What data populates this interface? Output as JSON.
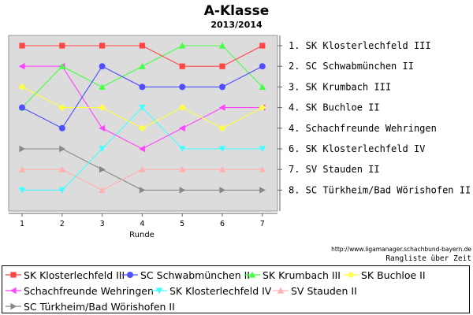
{
  "chart_data": {
    "type": "line",
    "title": "A-Klasse",
    "subtitle": "2013/2014",
    "xlabel": "Runde",
    "ylabel": "",
    "x": [
      1,
      2,
      3,
      4,
      5,
      6,
      7
    ],
    "ylim": [
      1,
      8
    ],
    "y_inverted": true,
    "grid": false,
    "legend_placement": "bottom",
    "right_labels": [
      "1. SK Klosterlechfeld III",
      "2. SC Schwabmünchen II",
      "3. SK Krumbach III",
      "4. SK Buchloe II",
      "4. Schachfreunde Wehringen",
      "6. SK Klosterlechfeld IV",
      "7. SV Stauden II",
      "8. SC Türkheim/Bad Wörishofen II"
    ],
    "source": "http://www.ligamanager.schachbund-bayern.de",
    "caption": "Rangliste über Zeit",
    "series": [
      {
        "name": "SK Klosterlechfeld III",
        "values": [
          1,
          1,
          1,
          1,
          2,
          2,
          1
        ],
        "color": "#ff4444",
        "marker": "square"
      },
      {
        "name": "SC Schwabmünchen II",
        "values": [
          4,
          5,
          2,
          3,
          3,
          3,
          2
        ],
        "color": "#4f4fff",
        "marker": "circle"
      },
      {
        "name": "SK Krumbach III",
        "values": [
          4,
          2,
          3,
          2,
          1,
          1,
          3
        ],
        "color": "#44ff44",
        "marker": "triangle-up"
      },
      {
        "name": "SK Buchloe II",
        "values": [
          3,
          4,
          4,
          5,
          4,
          5,
          4
        ],
        "color": "#ffff44",
        "marker": "diamond"
      },
      {
        "name": "Schachfreunde Wehringen",
        "values": [
          2,
          2,
          5,
          6,
          5,
          4,
          4
        ],
        "color": "#ff44ff",
        "marker": "triangle-left"
      },
      {
        "name": "SK Klosterlechfeld IV",
        "values": [
          8,
          8,
          6,
          4,
          6,
          6,
          6
        ],
        "color": "#44ffff",
        "marker": "triangle-down"
      },
      {
        "name": "SV Stauden II",
        "values": [
          7,
          7,
          8,
          7,
          7,
          7,
          7
        ],
        "color": "#ffb0b0",
        "marker": "triangle-up"
      },
      {
        "name": "SC Türkheim/Bad Wörishofen II",
        "values": [
          6,
          6,
          7,
          8,
          8,
          8,
          8
        ],
        "color": "#888888",
        "marker": "triangle-right"
      }
    ]
  }
}
